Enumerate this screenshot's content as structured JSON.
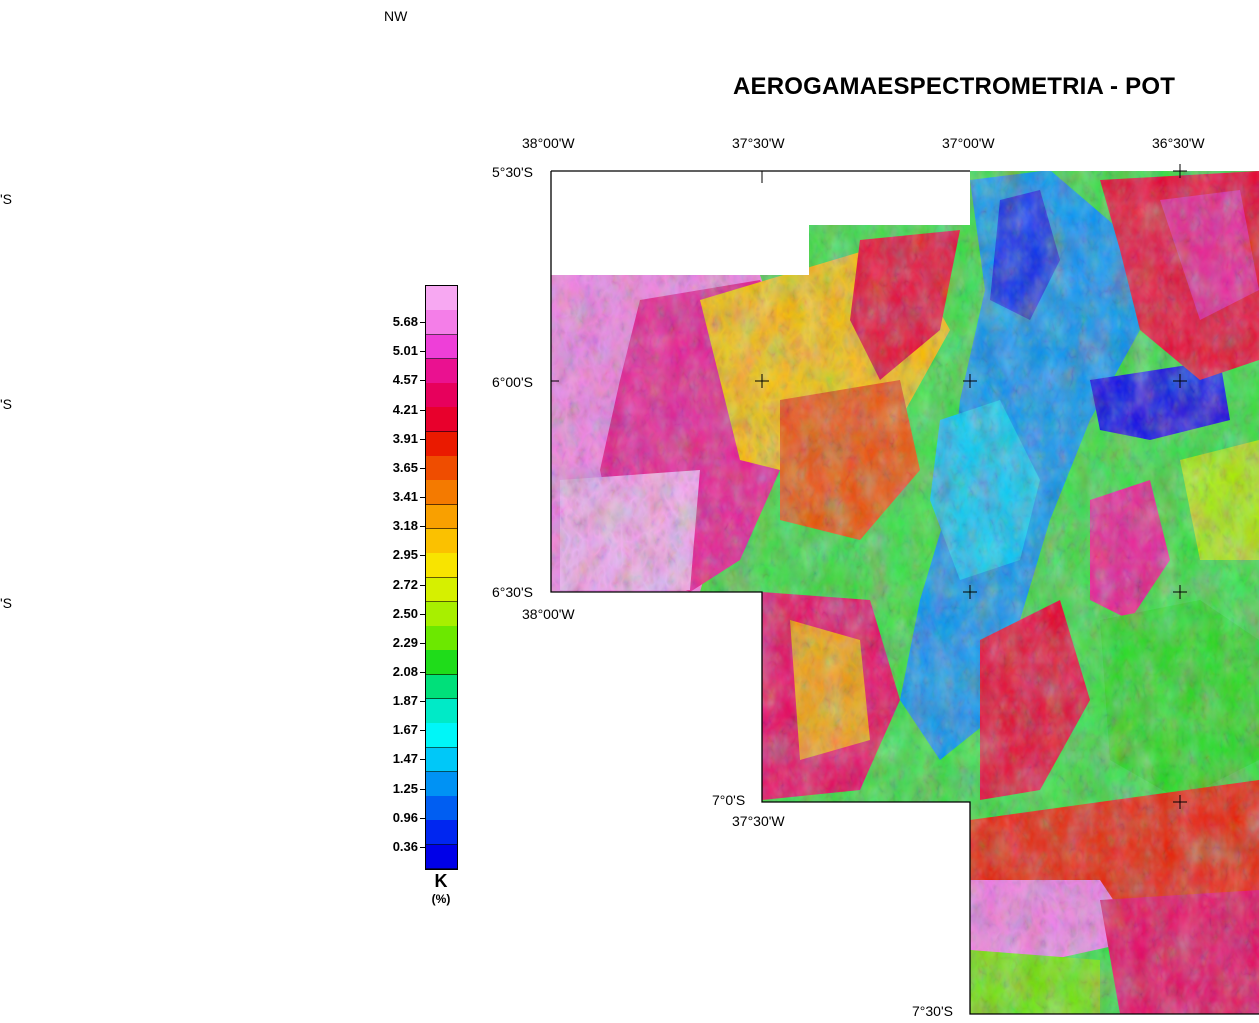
{
  "map": {
    "title": "AEROGAMAESPECTROMETRIA - POT",
    "corner_label": "NW",
    "left_edge_labels": [
      "'S",
      "'S",
      "'S"
    ],
    "lon_labels_top": [
      "38°00'W",
      "37°30'W",
      "37°00'W",
      "36°30'W"
    ],
    "lat_labels": [
      "5°30'S",
      "6°00'S",
      "6°30'S",
      "7°0'S",
      "7°30'S"
    ],
    "lon_labels_inner": [
      "38°00'W",
      "37°30'W"
    ]
  },
  "legend": {
    "variable": "K",
    "unit": "(%)",
    "values": [
      "5.68",
      "5.01",
      "4.57",
      "4.21",
      "3.91",
      "3.65",
      "3.41",
      "3.18",
      "2.95",
      "2.72",
      "2.50",
      "2.29",
      "2.08",
      "1.87",
      "1.67",
      "1.47",
      "1.25",
      "0.96",
      "0.36"
    ],
    "colors": [
      "#f7a8f2",
      "#f47ee8",
      "#ee3fd8",
      "#ea1190",
      "#e7005c",
      "#e8002c",
      "#ea1a00",
      "#ef4d00",
      "#f47a00",
      "#f9a000",
      "#fbc100",
      "#f8e400",
      "#d6f000",
      "#a8ef00",
      "#6ce800",
      "#1fdc1a",
      "#00e07a",
      "#00eac7",
      "#00f6f8",
      "#00c8f8",
      "#0092f4",
      "#005ef2",
      "#0026f0",
      "#0000e8"
    ]
  }
}
